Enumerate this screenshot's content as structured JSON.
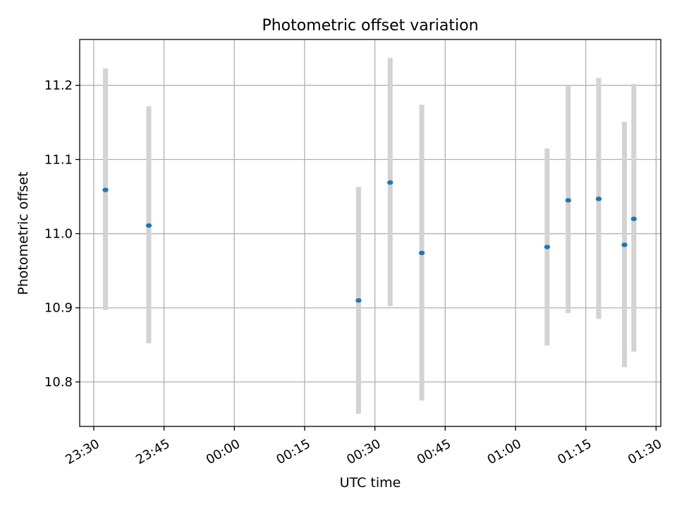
{
  "chart_data": {
    "type": "scatter",
    "title": "Photometric offset variation",
    "xlabel": "UTC time",
    "ylabel": "Photometric offset",
    "xlim": [
      "23:27",
      "01:31"
    ],
    "ylim": [
      10.74,
      11.262
    ],
    "grid": true,
    "x_ticks": [
      "23:30",
      "23:45",
      "00:00",
      "00:15",
      "00:30",
      "00:45",
      "01:00",
      "01:15",
      "01:30"
    ],
    "y_ticks": [
      "10.8",
      "10.9",
      "11.0",
      "11.1",
      "11.2"
    ],
    "colors": {
      "points": "#1f77b4",
      "error_bars": "#d3d3d3",
      "grid": "#b0b0b0"
    },
    "points": [
      {
        "time": "23:32:30",
        "y": 11.059,
        "y_low": 10.897,
        "y_high": 11.223
      },
      {
        "time": "23:41:45",
        "y": 11.011,
        "y_low": 10.852,
        "y_high": 11.172
      },
      {
        "time": "00:26:30",
        "y": 10.91,
        "y_low": 10.757,
        "y_high": 11.063
      },
      {
        "time": "00:33:15",
        "y": 11.069,
        "y_low": 10.902,
        "y_high": 11.237
      },
      {
        "time": "00:40:00",
        "y": 10.974,
        "y_low": 10.775,
        "y_high": 11.174
      },
      {
        "time": "01:06:45",
        "y": 10.982,
        "y_low": 10.849,
        "y_high": 11.115
      },
      {
        "time": "01:11:15",
        "y": 11.045,
        "y_low": 10.893,
        "y_high": 11.2
      },
      {
        "time": "01:17:45",
        "y": 11.047,
        "y_low": 10.885,
        "y_high": 11.21
      },
      {
        "time": "01:23:15",
        "y": 10.985,
        "y_low": 10.82,
        "y_high": 11.151
      },
      {
        "time": "01:25:15",
        "y": 11.02,
        "y_low": 10.841,
        "y_high": 11.202
      }
    ]
  }
}
